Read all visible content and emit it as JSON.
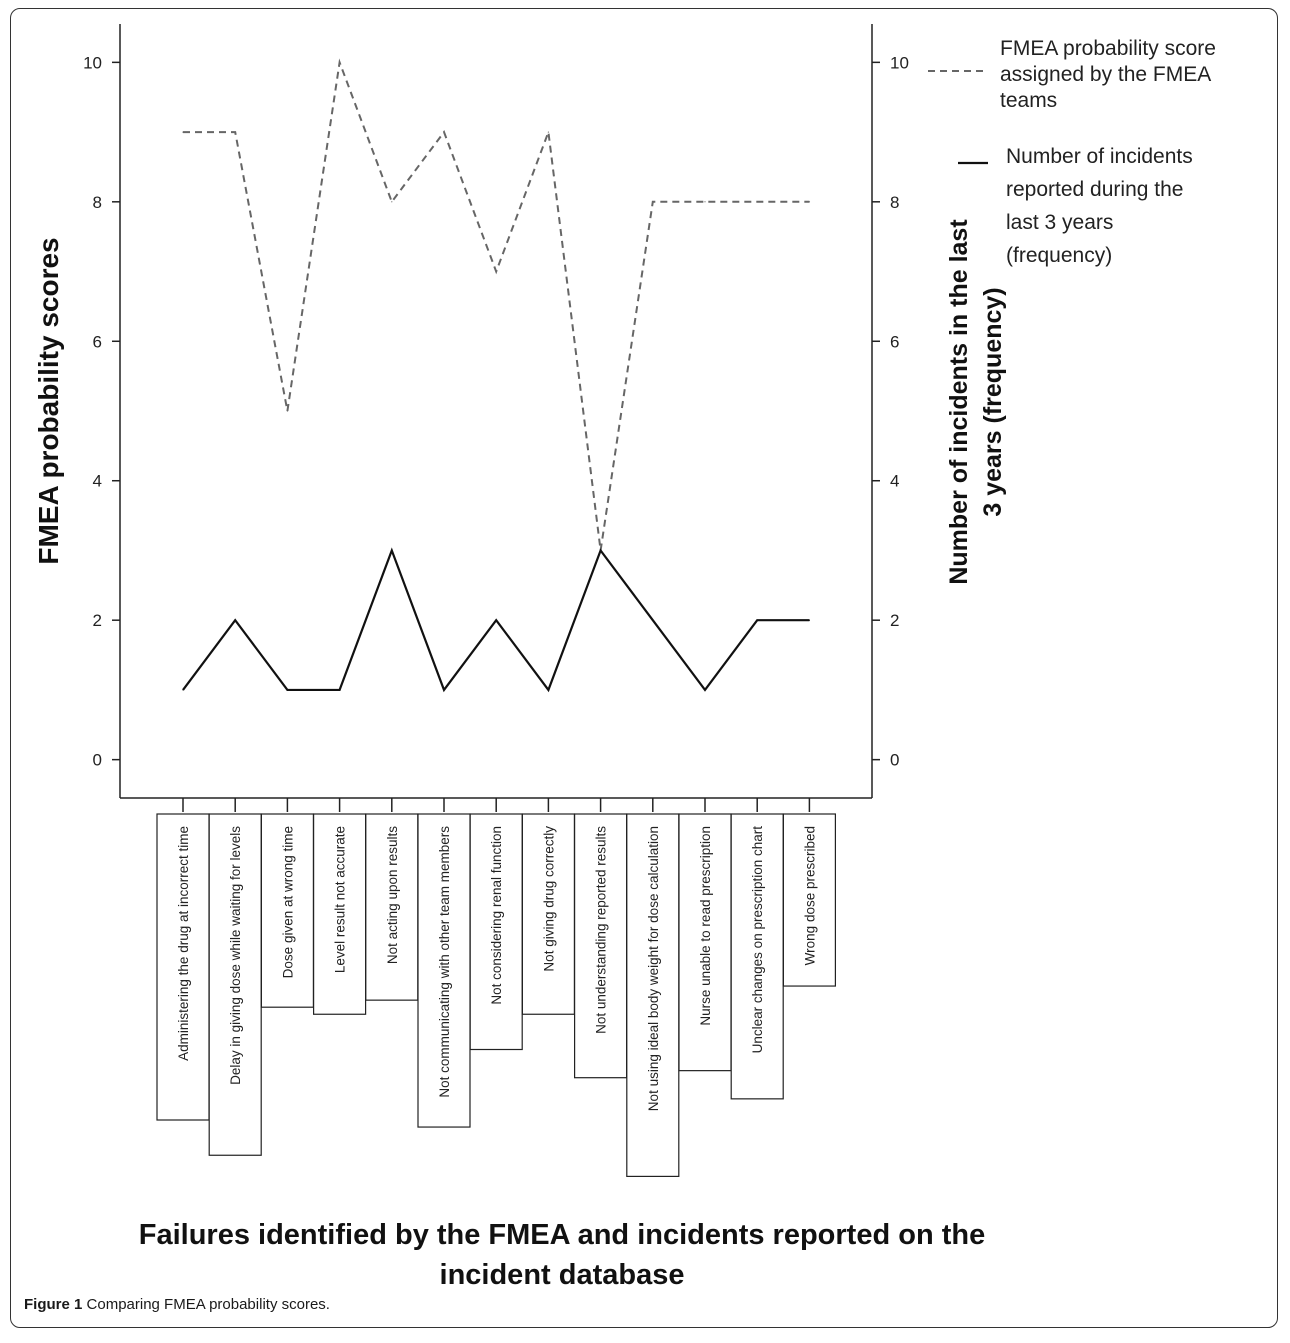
{
  "figure": {
    "caption_label": "Figure 1",
    "caption_text": " Comparing FMEA probability scores."
  },
  "chart_data": {
    "type": "line",
    "title": "Failures identified by the FMEA and incidents reported on the incident database",
    "title_lines": [
      "Failures identified by the FMEA and incidents reported on the",
      "incident database"
    ],
    "ylabel_left": "FMEA probability scores",
    "ylabel_right_lines": [
      "Number of incidents in the last",
      "3 years (frequency)"
    ],
    "yticks": [
      0,
      2,
      4,
      6,
      8,
      10
    ],
    "ylim": [
      -0.55,
      10.55
    ],
    "grid": false,
    "legend_position": "top-right",
    "categories": [
      "Administering the drug at incorrect time",
      "Delay in giving dose while waiting for levels",
      "Dose given at wrong time",
      "Level result not accurate",
      "Not acting upon results",
      "Not communicating with other team members",
      "Not considering renal function",
      "Not giving drug correctly",
      "Not understanding reported results",
      "Not using ideal body weight for dose calculation",
      "Nurse unable to read prescription",
      "Unclear changes on prescription chart",
      "Wrong dose prescribed"
    ],
    "series": [
      {
        "name": "FMEA probability score assigned by the FMEA teams",
        "legend_lines": [
          "FMEA probability score",
          "assigned by the FMEA",
          "teams"
        ],
        "style": "dashed",
        "color": "#666666",
        "values": [
          9,
          9,
          5,
          10,
          8,
          9,
          7,
          9,
          3,
          8,
          8,
          8,
          8
        ]
      },
      {
        "name": "Number of incidents reported during the last 3 years (frequency)",
        "legend_lines": [
          "Number of incidents",
          "reported during the",
          "last 3 years",
          "(frequency)"
        ],
        "style": "solid",
        "color": "#111111",
        "values": [
          1,
          2,
          1,
          1,
          3,
          1,
          2,
          1,
          3,
          2,
          1,
          2,
          2
        ]
      }
    ]
  }
}
